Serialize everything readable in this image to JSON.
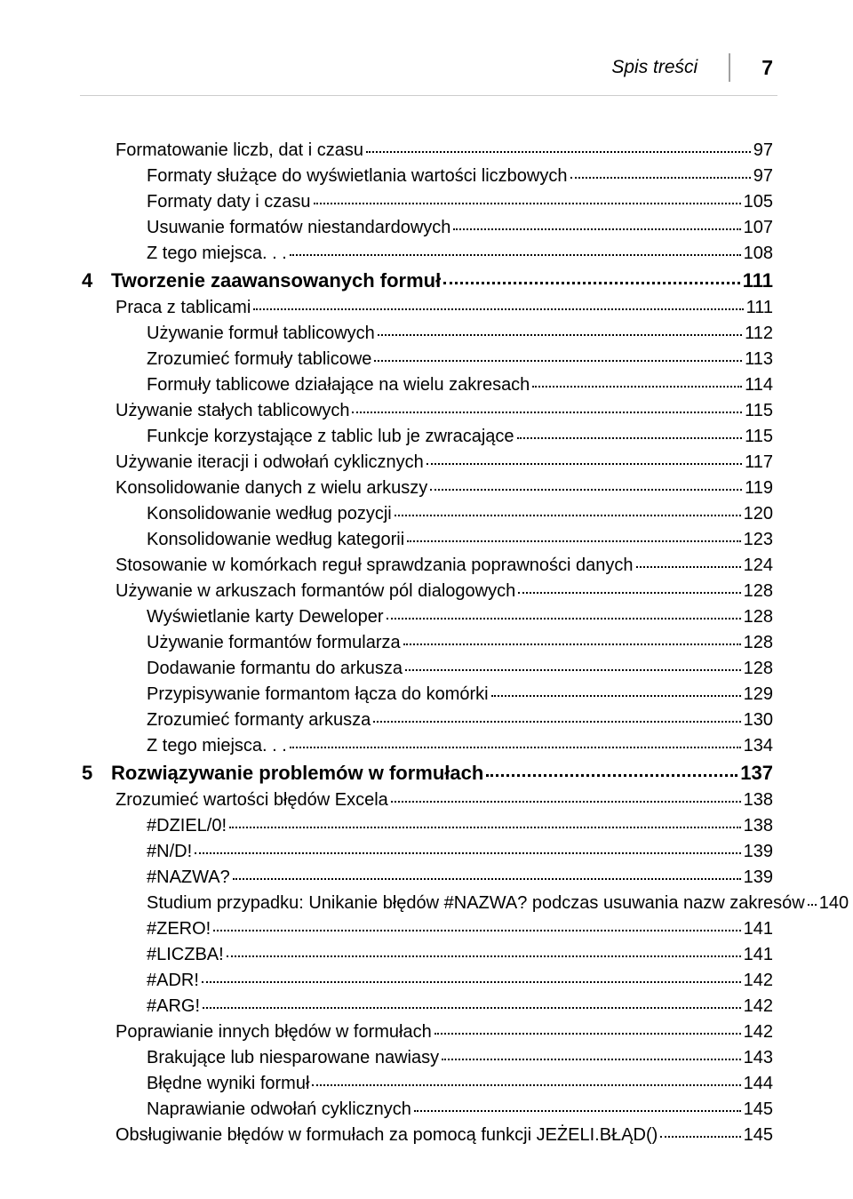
{
  "header": {
    "title": "Spis treści",
    "page_number": "7"
  },
  "entries": [
    {
      "level": 1,
      "text": "Formatowanie liczb, dat i czasu",
      "page": "97"
    },
    {
      "level": 2,
      "text": "Formaty służące do wyświetlania wartości liczbowych",
      "page": "97"
    },
    {
      "level": 2,
      "text": "Formaty daty i czasu",
      "page": "105"
    },
    {
      "level": 2,
      "text": "Usuwanie formatów niestandardowych",
      "page": "107"
    },
    {
      "level": 2,
      "text": "Z tego miejsca. . .",
      "page": "108"
    },
    {
      "level": 0,
      "chapter": "4",
      "text": "Tworzenie zaawansowanych formuł",
      "page": "111"
    },
    {
      "level": 1,
      "text": "Praca z tablicami",
      "page": "111"
    },
    {
      "level": 2,
      "text": "Używanie formuł tablicowych",
      "page": "112"
    },
    {
      "level": 2,
      "text": "Zrozumieć formuły tablicowe",
      "page": "113"
    },
    {
      "level": 2,
      "text": "Formuły tablicowe działające na wielu zakresach",
      "page": "114"
    },
    {
      "level": 1,
      "text": "Używanie stałych tablicowych",
      "page": "115"
    },
    {
      "level": 2,
      "text": "Funkcje korzystające z tablic lub je zwracające",
      "page": "115"
    },
    {
      "level": 1,
      "text": "Używanie iteracji i odwołań cyklicznych",
      "page": "117"
    },
    {
      "level": 1,
      "text": "Konsolidowanie danych z wielu arkuszy",
      "page": "119"
    },
    {
      "level": 2,
      "text": "Konsolidowanie według pozycji",
      "page": "120"
    },
    {
      "level": 2,
      "text": "Konsolidowanie według kategorii",
      "page": "123"
    },
    {
      "level": 1,
      "text": "Stosowanie w komórkach reguł sprawdzania poprawności danych",
      "page": "124"
    },
    {
      "level": 1,
      "text": "Używanie w arkuszach formantów pól dialogowych",
      "page": "128"
    },
    {
      "level": 2,
      "text": "Wyświetlanie karty Deweloper",
      "page": "128"
    },
    {
      "level": 2,
      "text": "Używanie formantów formularza",
      "page": "128"
    },
    {
      "level": 2,
      "text": "Dodawanie formantu do arkusza",
      "page": "128"
    },
    {
      "level": 2,
      "text": "Przypisywanie formantom łącza do komórki",
      "page": "129"
    },
    {
      "level": 2,
      "text": "Zrozumieć formanty arkusza",
      "page": "130"
    },
    {
      "level": 2,
      "text": "Z tego miejsca. . .",
      "page": "134"
    },
    {
      "level": 0,
      "chapter": "5",
      "text": "Rozwiązywanie problemów w formułach",
      "page": "137"
    },
    {
      "level": 1,
      "text": "Zrozumieć wartości błędów Excela",
      "page": "138"
    },
    {
      "level": 2,
      "text": "#DZIEL/0!",
      "page": "138"
    },
    {
      "level": 2,
      "text": "#N/D!",
      "page": "139"
    },
    {
      "level": 2,
      "text": "#NAZWA?",
      "page": "139"
    },
    {
      "level": 2,
      "text": "Studium przypadku: Unikanie błędów #NAZWA? podczas usuwania nazw zakresów",
      "page": "140"
    },
    {
      "level": 2,
      "text": "#ZERO!",
      "page": "141"
    },
    {
      "level": 2,
      "text": "#LICZBA!",
      "page": "141"
    },
    {
      "level": 2,
      "text": "#ADR!",
      "page": "142"
    },
    {
      "level": 2,
      "text": "#ARG!",
      "page": "142"
    },
    {
      "level": 1,
      "text": "Poprawianie innych błędów w formułach",
      "page": "142"
    },
    {
      "level": 2,
      "text": "Brakujące lub niesparowane nawiasy",
      "page": "143"
    },
    {
      "level": 2,
      "text": "Błędne wyniki formuł",
      "page": "144"
    },
    {
      "level": 2,
      "text": "Naprawianie odwołań cyklicznych",
      "page": "145"
    },
    {
      "level": 1,
      "text": "Obsługiwanie błędów w formułach za pomocą funkcji JEŻELI.BŁĄD()",
      "page": "145"
    }
  ]
}
